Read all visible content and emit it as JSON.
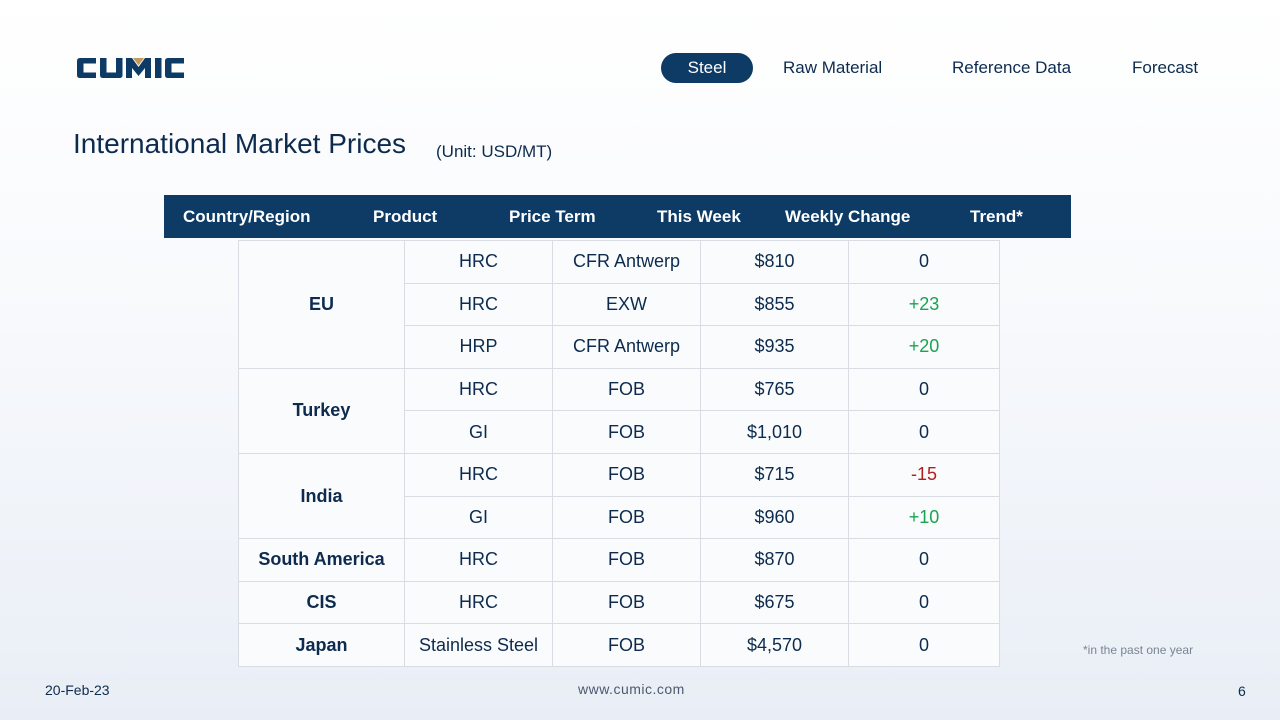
{
  "logo": {
    "text": "CUMIC",
    "brand_color": "#0d3b66",
    "accent_color": "#c49a5b"
  },
  "nav": {
    "items": [
      {
        "label": "Steel",
        "active": true
      },
      {
        "label": "Raw Material",
        "active": false
      },
      {
        "label": "Reference Data",
        "active": false
      },
      {
        "label": "Forecast",
        "active": false
      }
    ]
  },
  "title": "International Market Prices",
  "unit": "(Unit: USD/MT)",
  "table": {
    "headers": [
      "Country/Region",
      "Product",
      "Price Term",
      "This Week",
      "Weekly Change",
      "Trend*"
    ],
    "groups": [
      {
        "region": "EU",
        "rows": [
          {
            "product": "HRC",
            "term": "CFR Antwerp",
            "price": "$810",
            "change": "0"
          },
          {
            "product": "HRC",
            "term": "EXW",
            "price": "$855",
            "change": "+23"
          },
          {
            "product": "HRP",
            "term": "CFR Antwerp",
            "price": "$935",
            "change": "+20"
          }
        ]
      },
      {
        "region": "Turkey",
        "rows": [
          {
            "product": "HRC",
            "term": "FOB",
            "price": "$765",
            "change": "0"
          },
          {
            "product": "GI",
            "term": "FOB",
            "price": "$1,010",
            "change": "0"
          }
        ]
      },
      {
        "region": "India",
        "rows": [
          {
            "product": "HRC",
            "term": "FOB",
            "price": "$715",
            "change": "-15"
          },
          {
            "product": "GI",
            "term": "FOB",
            "price": "$960",
            "change": "+10"
          }
        ]
      },
      {
        "region": "South America",
        "rows": [
          {
            "product": "HRC",
            "term": "FOB",
            "price": "$870",
            "change": "0"
          }
        ]
      },
      {
        "region": "CIS",
        "rows": [
          {
            "product": "HRC",
            "term": "FOB",
            "price": "$675",
            "change": "0"
          }
        ]
      },
      {
        "region": "Japan",
        "rows": [
          {
            "product": "Stainless Steel",
            "term": "FOB",
            "price": "$4,570",
            "change": "0"
          }
        ]
      }
    ]
  },
  "colors": {
    "positive": "#1aa351",
    "negative": "#b11e1e",
    "header_bg": "#0d3b66"
  },
  "footnote": "*in the past one year",
  "footer": {
    "date": "20-Feb-23",
    "website": "www.cumic.com",
    "page_number": "6"
  }
}
